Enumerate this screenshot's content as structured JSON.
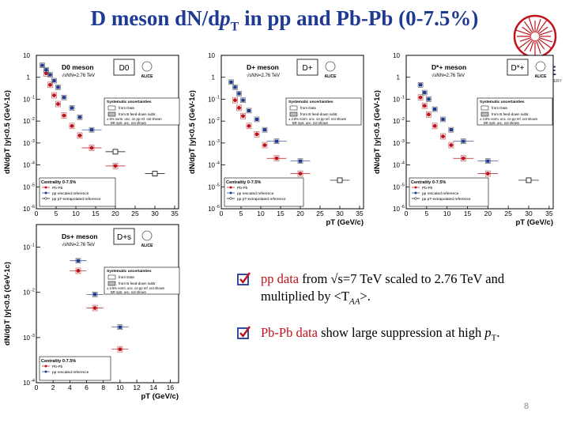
{
  "title": {
    "prefix": "D meson dN/d",
    "pt_p": "p",
    "pt_sub": "T",
    "suffix": " in pp and Pb-Pb (0-7.5%)"
  },
  "logo": {
    "name": "ALICE",
    "tagline": "A JOURNEY OF DISCOVERY"
  },
  "page_number": "8",
  "bullets": [
    {
      "parts": [
        {
          "text": "pp data",
          "color": "#c0121a",
          "italic": false
        },
        {
          "text": " from √s=7 TeV scaled to 2.76 TeV and multiplied by <T",
          "color": "#000000",
          "italic": false
        },
        {
          "text": "AA",
          "color": "#000000",
          "italic": true,
          "sub": true
        },
        {
          "text": ">.",
          "color": "#000000",
          "italic": false
        }
      ]
    },
    {
      "parts": [
        {
          "text": "Pb-Pb data",
          "color": "#c0121a",
          "italic": false
        },
        {
          "text": " show large suppression at high ",
          "color": "#000000",
          "italic": false
        },
        {
          "text": "p",
          "color": "#000000",
          "italic": true
        },
        {
          "text": "T",
          "color": "#000000",
          "italic": false,
          "sub": true
        },
        {
          "text": ".",
          "color": "#000000",
          "italic": false
        }
      ]
    }
  ],
  "chart_data": [
    {
      "type": "scatter",
      "ylabel": "dN/dpT |y|<0.5 (GeV-1c)",
      "xlabel": "",
      "meson_label": "D0 meson",
      "energy": "√sNN=2.76 TeV",
      "box_label": "D0",
      "x_ticks": [
        0,
        5,
        10,
        15,
        20,
        25,
        30,
        35
      ],
      "y_ticks": [
        "10",
        "1",
        "10-1",
        "10-2",
        "10-3",
        "10-4",
        "10-5",
        "10-6"
      ],
      "ylim_log10": [
        -6,
        1
      ],
      "xlim": [
        0,
        36
      ],
      "syst_title": "Systematic uncertainties",
      "syst_items": [
        "from Data",
        "from B feed-down subtr."
      ],
      "syst_note": "± 5% norm. unc. on pp ref. not shown",
      "syst_note2": "BR syst. unc. not shown",
      "centrality": "Centrality 0-7.5%",
      "legend": [
        "Pb-Pb",
        "pp rescaled reference",
        "pp pT-extrapolated reference"
      ],
      "series": [
        {
          "name": "Pb-Pb",
          "color": "#c0121a",
          "x": [
            2.5,
            3.5,
            4.5,
            5.5,
            7,
            9,
            11,
            14,
            20
          ],
          "y": [
            1.5,
            0.45,
            0.15,
            0.06,
            0.018,
            0.006,
            0.0022,
            0.0006,
            9e-05
          ]
        },
        {
          "name": "pp rescaled reference",
          "color": "#1f3a93",
          "x": [
            1.5,
            2.5,
            3.5,
            4.5,
            5.5,
            7,
            9,
            11,
            14
          ],
          "y": [
            3.5,
            2.2,
            1.3,
            0.7,
            0.35,
            0.12,
            0.04,
            0.015,
            0.004
          ]
        },
        {
          "name": "pp pT-extrapolated reference",
          "color": "#000000",
          "x": [
            20,
            30
          ],
          "y": [
            0.0004,
            4e-05
          ]
        }
      ]
    },
    {
      "type": "scatter",
      "ylabel": "dN/dpT |y|<0.5 (GeV-1c)",
      "xlabel": "pT (GeV/c)",
      "meson_label": "D+ meson",
      "energy": "√sNN=2.76 TeV",
      "box_label": "D+",
      "x_ticks": [
        0,
        5,
        10,
        15,
        20,
        25,
        30,
        35
      ],
      "y_ticks": [
        "10",
        "1",
        "10-1",
        "10-2",
        "10-3",
        "10-4",
        "10-5",
        "10-6"
      ],
      "ylim_log10": [
        -6,
        1
      ],
      "xlim": [
        0,
        36
      ],
      "syst_title": "Systematic uncertainties",
      "syst_items": [
        "from Data",
        "from B feed-down subtr."
      ],
      "syst_note": "± 4.8% norm. unc. on pp ref. not shown",
      "syst_note2": "BR syst. unc. not shown",
      "centrality": "Centrality 0-7.5%",
      "legend": [
        "Pb-Pb",
        "pp rescaled reference",
        "pp pT-extrapolated reference"
      ],
      "series": [
        {
          "name": "Pb-Pb",
          "color": "#c0121a",
          "x": [
            3.5,
            4.5,
            5.5,
            7,
            9,
            11,
            14,
            20
          ],
          "y": [
            0.09,
            0.04,
            0.017,
            0.006,
            0.0025,
            0.0008,
            0.0002,
            4e-05
          ]
        },
        {
          "name": "pp rescaled reference",
          "color": "#1f3a93",
          "x": [
            2.5,
            3.5,
            4.5,
            5.5,
            7,
            9,
            11,
            14,
            20
          ],
          "y": [
            0.6,
            0.35,
            0.18,
            0.09,
            0.03,
            0.012,
            0.004,
            0.0012,
            0.00015
          ]
        },
        {
          "name": "pp pT-extrapolated reference",
          "color": "#000000",
          "x": [
            30
          ],
          "y": [
            2e-05
          ]
        }
      ]
    },
    {
      "type": "scatter",
      "ylabel": "dN/dpT |y|<0.5 (GeV-1c)",
      "xlabel": "pT (GeV/c)",
      "meson_label": "D*+ meson",
      "energy": "√sNN=2.76 TeV",
      "box_label": "D*+",
      "x_ticks": [
        0,
        5,
        10,
        15,
        20,
        25,
        30,
        35
      ],
      "y_ticks": [
        "10",
        "1",
        "10-1",
        "10-2",
        "10-3",
        "10-4",
        "10-5",
        "10-6"
      ],
      "ylim_log10": [
        -6,
        1
      ],
      "xlim": [
        0,
        36
      ],
      "syst_title": "Systematic uncertainties",
      "syst_items": [
        "from Data",
        "from B feed-down subtr."
      ],
      "syst_note": "± 4.8% norm. unc. on pp ref. not shown",
      "syst_note2": "BR syst. unc. not shown",
      "centrality": "Centrality 0-7.5%",
      "legend": [
        "Pb-Pb",
        "pp rescaled reference",
        "pp pT-extrapolated reference"
      ],
      "series": [
        {
          "name": "Pb-Pb",
          "color": "#c0121a",
          "x": [
            3.5,
            4.5,
            5.5,
            7,
            9,
            11,
            14,
            20
          ],
          "y": [
            0.12,
            0.05,
            0.02,
            0.006,
            0.002,
            0.0008,
            0.0002,
            4e-05
          ]
        },
        {
          "name": "pp rescaled reference",
          "color": "#1f3a93",
          "x": [
            3.5,
            4.5,
            5.5,
            7,
            9,
            11,
            14,
            20
          ],
          "y": [
            0.45,
            0.2,
            0.1,
            0.035,
            0.012,
            0.004,
            0.0012,
            0.00015
          ]
        },
        {
          "name": "pp pT-extrapolated reference",
          "color": "#000000",
          "x": [
            30
          ],
          "y": [
            2e-05
          ]
        }
      ]
    },
    {
      "type": "scatter",
      "ylabel": "dN/dpT |y|<0.5 (GeV-1c)",
      "xlabel": "pT (GeV/c)",
      "meson_label": "Ds+ meson",
      "energy": "√sNN=2.76 TeV",
      "box_label": "D+s",
      "x_ticks": [
        0,
        2,
        4,
        6,
        8,
        10,
        12,
        14,
        16
      ],
      "y_ticks": [
        "10-1",
        "10-2",
        "10-3",
        "10-4"
      ],
      "ylim_log10": [
        -4,
        -0.5
      ],
      "xlim": [
        0,
        17
      ],
      "syst_title": "Systematic uncertainties",
      "syst_items": [
        "from Data",
        "from B feed-down subtr."
      ],
      "syst_note": "± 4.8% norm. unc. on pp ref. not shown",
      "syst_note2": "BR syst. unc. not shown",
      "centrality": "Centrality 0-7.5%",
      "legend": [
        "Pb-Pb",
        "pp rescaled reference"
      ],
      "series": [
        {
          "name": "Pb-Pb",
          "color": "#c0121a",
          "x": [
            5,
            7,
            10
          ],
          "y": [
            0.03,
            0.0045,
            0.00055
          ]
        },
        {
          "name": "pp rescaled reference",
          "color": "#1f3a93",
          "x": [
            5,
            7,
            10
          ],
          "y": [
            0.05,
            0.009,
            0.0017
          ]
        }
      ]
    }
  ]
}
